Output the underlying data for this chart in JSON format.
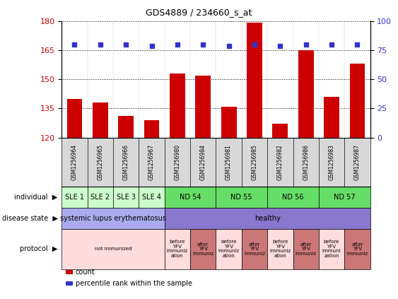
{
  "title": "GDS4889 / 234660_s_at",
  "samples": [
    "GSM1256964",
    "GSM1256965",
    "GSM1256966",
    "GSM1256967",
    "GSM1256980",
    "GSM1256984",
    "GSM1256981",
    "GSM1256985",
    "GSM1256982",
    "GSM1256986",
    "GSM1256983",
    "GSM1256987"
  ],
  "counts": [
    140,
    138,
    131,
    129,
    153,
    152,
    136,
    179,
    127,
    165,
    141,
    158
  ],
  "percentiles": [
    168,
    168,
    168,
    167,
    168,
    168,
    167,
    168,
    167,
    168,
    168,
    168
  ],
  "ylim_left": [
    120,
    180
  ],
  "ylim_right": [
    0,
    100
  ],
  "yticks_left": [
    120,
    135,
    150,
    165,
    180
  ],
  "yticks_right": [
    0,
    25,
    50,
    75,
    100
  ],
  "bar_color": "#cc0000",
  "dot_color": "#3333cc",
  "sample_bg": "#d8d8d8",
  "individuals": [
    {
      "label": "SLE 1",
      "start": 0,
      "end": 1,
      "color": "#ccffcc"
    },
    {
      "label": "SLE 2",
      "start": 1,
      "end": 2,
      "color": "#ccffcc"
    },
    {
      "label": "SLE 3",
      "start": 2,
      "end": 3,
      "color": "#ccffcc"
    },
    {
      "label": "SLE 4",
      "start": 3,
      "end": 4,
      "color": "#ccffcc"
    },
    {
      "label": "ND 54",
      "start": 4,
      "end": 6,
      "color": "#66dd66"
    },
    {
      "label": "ND 55",
      "start": 6,
      "end": 8,
      "color": "#66dd66"
    },
    {
      "label": "ND 56",
      "start": 8,
      "end": 10,
      "color": "#66dd66"
    },
    {
      "label": "ND 57",
      "start": 10,
      "end": 12,
      "color": "#66dd66"
    }
  ],
  "disease_states": [
    {
      "label": "systemic lupus erythematosus",
      "start": 0,
      "end": 4,
      "color": "#aaaaee"
    },
    {
      "label": "healthy",
      "start": 4,
      "end": 12,
      "color": "#8877cc"
    }
  ],
  "protocols": [
    {
      "label": "not immunized",
      "start": 0,
      "end": 4,
      "color": "#ffdddd"
    },
    {
      "label": "before\nYFV\nimmuniz\nation",
      "start": 4,
      "end": 5,
      "color": "#ffdddd"
    },
    {
      "label": "after\nYFV\nimmuniz",
      "start": 5,
      "end": 6,
      "color": "#cc7777"
    },
    {
      "label": "before\nYFV\nimmuniz\nation",
      "start": 6,
      "end": 7,
      "color": "#ffdddd"
    },
    {
      "label": "after\nYFV\nimmuniz",
      "start": 7,
      "end": 8,
      "color": "#cc7777"
    },
    {
      "label": "before\nYFV\nimmuniz\nation",
      "start": 8,
      "end": 9,
      "color": "#ffdddd"
    },
    {
      "label": "after\nYFV\nimmuniz",
      "start": 9,
      "end": 10,
      "color": "#cc7777"
    },
    {
      "label": "before\nYFV\nimmuni\nzation",
      "start": 10,
      "end": 11,
      "color": "#ffdddd"
    },
    {
      "label": "after\nYFV\nimmuniz",
      "start": 11,
      "end": 12,
      "color": "#cc7777"
    }
  ],
  "row_labels": [
    "individual",
    "disease state",
    "protocol"
  ],
  "legend_items": [
    {
      "color": "#cc0000",
      "label": "count"
    },
    {
      "color": "#3333cc",
      "label": "percentile rank within the sample"
    }
  ]
}
